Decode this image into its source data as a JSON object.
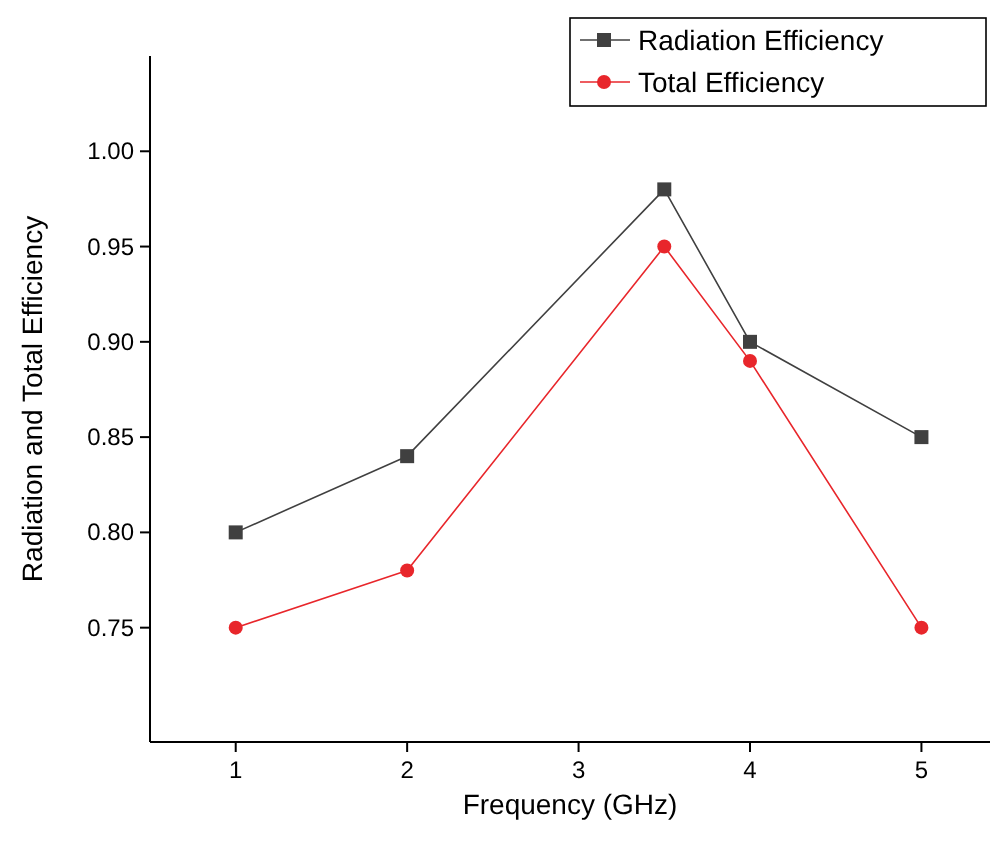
{
  "chart_data": {
    "type": "line",
    "xlabel": "Frequency (GHz)",
    "ylabel": "Radiation and Total Efficiency",
    "x": [
      1,
      2,
      3.5,
      4,
      5
    ],
    "series": [
      {
        "name": "Radiation Efficiency",
        "color": "#404040",
        "marker": "square",
        "values": [
          0.8,
          0.84,
          0.98,
          0.9,
          0.85
        ]
      },
      {
        "name": "Total Efficiency",
        "color": "#e8262b",
        "marker": "circle",
        "values": [
          0.75,
          0.78,
          0.95,
          0.89,
          0.75
        ]
      }
    ],
    "xlim": [
      0.5,
      5.4
    ],
    "ylim": [
      0.69,
      1.05
    ],
    "xticks": [
      1,
      2,
      3,
      4,
      5
    ],
    "yticks": [
      {
        "value": 0.75,
        "label": "0.75"
      },
      {
        "value": 0.8,
        "label": "0.80"
      },
      {
        "value": 0.85,
        "label": "0.85"
      },
      {
        "value": 0.9,
        "label": "0.90"
      },
      {
        "value": 0.95,
        "label": "0.95"
      },
      {
        "value": 1.0,
        "label": "1.00"
      }
    ],
    "legend": "top right",
    "grid": false
  }
}
